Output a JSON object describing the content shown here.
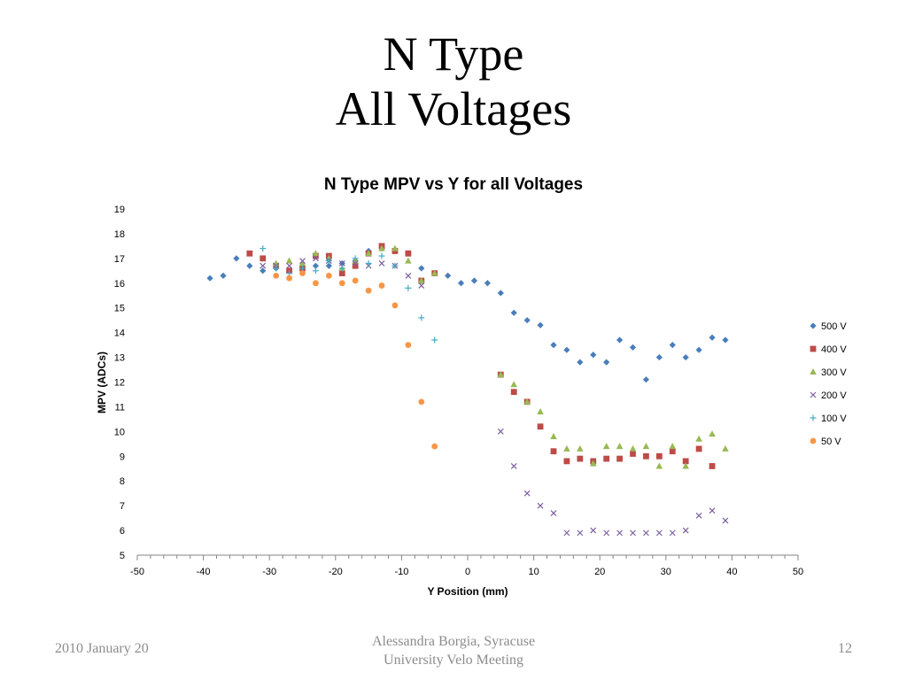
{
  "slide": {
    "title_line1": "N Type",
    "title_line2": "All Voltages",
    "footer_left": "2010 January 20",
    "footer_center_line1": "Alessandra Borgia, Syracuse",
    "footer_center_line2": "University Velo Meeting",
    "page_number": "12"
  },
  "chart_data": {
    "type": "scatter",
    "title": "N Type MPV vs Y for all Voltages",
    "xlabel": "Y Position (mm)",
    "ylabel": "MPV (ADCs)",
    "xlim": [
      -50,
      50
    ],
    "ylim": [
      5,
      19
    ],
    "x_ticks": [
      -50,
      -40,
      -30,
      -20,
      -10,
      0,
      10,
      20,
      30,
      40,
      50
    ],
    "y_ticks": [
      5,
      6,
      7,
      8,
      9,
      10,
      11,
      12,
      13,
      14,
      15,
      16,
      17,
      18,
      19
    ],
    "grid": false,
    "legend_position": "right",
    "series": [
      {
        "name": "500 V",
        "marker": "diamond",
        "color": "#4a7ebb",
        "points": [
          [
            -39,
            16.2
          ],
          [
            -37,
            16.3
          ],
          [
            -35,
            17.0
          ],
          [
            -33,
            16.7
          ],
          [
            -31,
            16.5
          ],
          [
            -29,
            16.6
          ],
          [
            -27,
            16.5
          ],
          [
            -25,
            16.7
          ],
          [
            -23,
            16.7
          ],
          [
            -21,
            16.7
          ],
          [
            -19,
            16.8
          ],
          [
            -17,
            16.9
          ],
          [
            -15,
            17.3
          ],
          [
            -13,
            17.4
          ],
          [
            -11,
            17.3
          ],
          [
            -9,
            17.2
          ],
          [
            -7,
            16.6
          ],
          [
            -5,
            16.4
          ],
          [
            -3,
            16.3
          ],
          [
            -1,
            16.0
          ],
          [
            1,
            16.1
          ],
          [
            3,
            16.0
          ],
          [
            5,
            15.6
          ],
          [
            7,
            14.8
          ],
          [
            9,
            14.5
          ],
          [
            11,
            14.3
          ],
          [
            13,
            13.5
          ],
          [
            15,
            13.3
          ],
          [
            17,
            12.8
          ],
          [
            19,
            13.1
          ],
          [
            21,
            12.8
          ],
          [
            23,
            13.7
          ],
          [
            25,
            13.4
          ],
          [
            27,
            12.1
          ],
          [
            29,
            13.0
          ],
          [
            31,
            13.5
          ],
          [
            33,
            13.0
          ],
          [
            35,
            13.3
          ],
          [
            37,
            13.8
          ],
          [
            39,
            13.7
          ]
        ]
      },
      {
        "name": "400 V",
        "marker": "square",
        "color": "#be4b48",
        "points": [
          [
            -33,
            17.2
          ],
          [
            -31,
            17.0
          ],
          [
            -29,
            16.7
          ],
          [
            -27,
            16.5
          ],
          [
            -25,
            16.6
          ],
          [
            -23,
            17.1
          ],
          [
            -21,
            17.1
          ],
          [
            -19,
            16.4
          ],
          [
            -17,
            16.7
          ],
          [
            -15,
            17.2
          ],
          [
            -13,
            17.5
          ],
          [
            -11,
            17.3
          ],
          [
            -9,
            17.2
          ],
          [
            -7,
            16.1
          ],
          [
            -5,
            16.4
          ],
          [
            5,
            12.3
          ],
          [
            7,
            11.6
          ],
          [
            9,
            11.2
          ],
          [
            11,
            10.2
          ],
          [
            13,
            9.2
          ],
          [
            15,
            8.8
          ],
          [
            17,
            8.9
          ],
          [
            19,
            8.8
          ],
          [
            21,
            8.9
          ],
          [
            23,
            8.9
          ],
          [
            25,
            9.1
          ],
          [
            27,
            9.0
          ],
          [
            29,
            9.0
          ],
          [
            31,
            9.2
          ],
          [
            33,
            8.8
          ],
          [
            35,
            9.3
          ],
          [
            37,
            8.6
          ]
        ]
      },
      {
        "name": "300 V",
        "marker": "triangle",
        "color": "#98b954",
        "points": [
          [
            -29,
            16.8
          ],
          [
            -27,
            16.9
          ],
          [
            -25,
            16.8
          ],
          [
            -23,
            17.2
          ],
          [
            -21,
            17.0
          ],
          [
            -19,
            16.6
          ],
          [
            -17,
            16.9
          ],
          [
            -15,
            17.2
          ],
          [
            -13,
            17.4
          ],
          [
            -11,
            17.4
          ],
          [
            -9,
            16.9
          ],
          [
            -7,
            16.1
          ],
          [
            -5,
            16.4
          ],
          [
            5,
            12.3
          ],
          [
            7,
            11.9
          ],
          [
            9,
            11.2
          ],
          [
            11,
            10.8
          ],
          [
            13,
            9.8
          ],
          [
            15,
            9.3
          ],
          [
            17,
            9.3
          ],
          [
            19,
            8.7
          ],
          [
            21,
            9.4
          ],
          [
            23,
            9.4
          ],
          [
            25,
            9.3
          ],
          [
            27,
            9.4
          ],
          [
            29,
            8.6
          ],
          [
            31,
            9.4
          ],
          [
            33,
            8.6
          ],
          [
            35,
            9.7
          ],
          [
            37,
            9.9
          ],
          [
            39,
            9.3
          ]
        ]
      },
      {
        "name": "200 V",
        "marker": "x",
        "color": "#7d60a0",
        "points": [
          [
            -31,
            16.7
          ],
          [
            -29,
            16.7
          ],
          [
            -27,
            16.7
          ],
          [
            -25,
            16.9
          ],
          [
            -23,
            17.0
          ],
          [
            -21,
            16.9
          ],
          [
            -19,
            16.8
          ],
          [
            -17,
            16.8
          ],
          [
            -15,
            16.7
          ],
          [
            -13,
            16.8
          ],
          [
            -11,
            16.7
          ],
          [
            -9,
            16.3
          ],
          [
            -7,
            15.9
          ],
          [
            5,
            10.0
          ],
          [
            7,
            8.6
          ],
          [
            9,
            7.5
          ],
          [
            11,
            7.0
          ],
          [
            13,
            6.7
          ],
          [
            15,
            5.9
          ],
          [
            17,
            5.9
          ],
          [
            19,
            6.0
          ],
          [
            21,
            5.9
          ],
          [
            23,
            5.9
          ],
          [
            25,
            5.9
          ],
          [
            27,
            5.9
          ],
          [
            29,
            5.9
          ],
          [
            31,
            5.9
          ],
          [
            33,
            6.0
          ],
          [
            35,
            6.6
          ],
          [
            37,
            6.8
          ],
          [
            39,
            6.4
          ]
        ]
      },
      {
        "name": "100 V",
        "marker": "plus",
        "color": "#46aac5",
        "points": [
          [
            -31,
            17.4
          ],
          [
            -29,
            16.6
          ],
          [
            -27,
            16.4
          ],
          [
            -25,
            16.6
          ],
          [
            -23,
            16.5
          ],
          [
            -21,
            16.9
          ],
          [
            -19,
            16.6
          ],
          [
            -17,
            17.0
          ],
          [
            -15,
            16.8
          ],
          [
            -13,
            17.1
          ],
          [
            -11,
            16.7
          ],
          [
            -9,
            15.8
          ],
          [
            -7,
            14.6
          ],
          [
            -5,
            13.7
          ]
        ]
      },
      {
        "name": "50 V",
        "marker": "circle",
        "color": "#f79646",
        "points": [
          [
            -29,
            16.3
          ],
          [
            -27,
            16.2
          ],
          [
            -25,
            16.4
          ],
          [
            -23,
            16.0
          ],
          [
            -21,
            16.3
          ],
          [
            -19,
            16.0
          ],
          [
            -17,
            16.1
          ],
          [
            -15,
            15.7
          ],
          [
            -13,
            15.9
          ],
          [
            -11,
            15.1
          ],
          [
            -9,
            13.5
          ],
          [
            -7,
            11.2
          ],
          [
            -5,
            9.4
          ]
        ]
      }
    ]
  }
}
